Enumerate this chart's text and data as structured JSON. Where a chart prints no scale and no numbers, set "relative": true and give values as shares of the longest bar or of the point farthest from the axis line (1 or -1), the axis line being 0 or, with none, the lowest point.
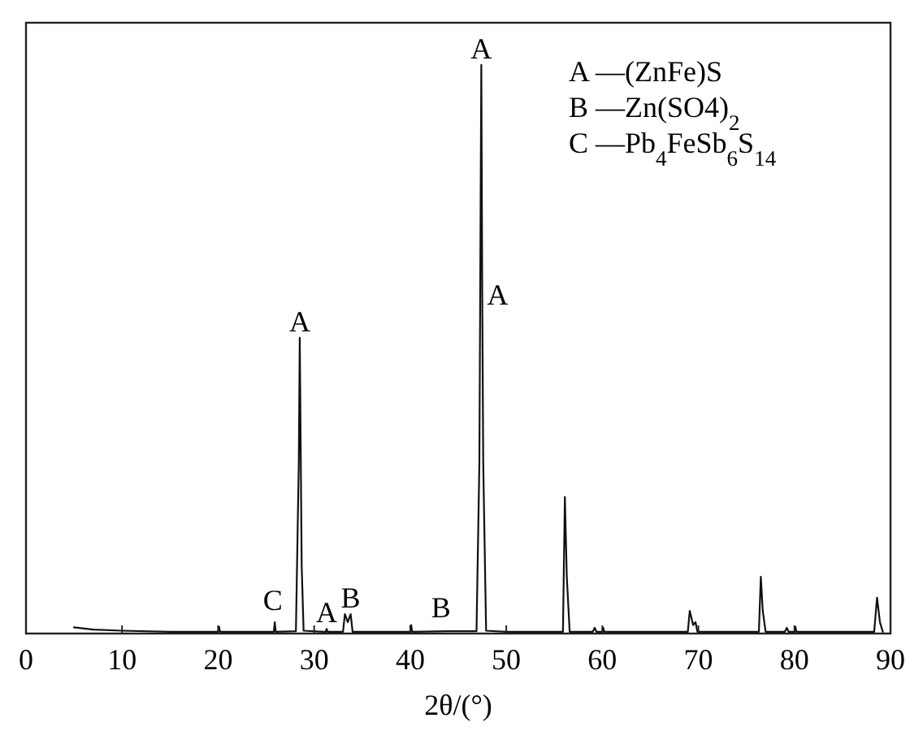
{
  "chart_data": {
    "type": "line",
    "relative": true,
    "xlabel": "2θ/(°)",
    "xlim": [
      0,
      90
    ],
    "xticks": [
      0,
      10,
      20,
      30,
      40,
      50,
      60,
      70,
      80,
      90
    ],
    "tick_labels": "x",
    "grid": false,
    "marker": "none",
    "line_style": "solid",
    "x": [
      5,
      7,
      10,
      15,
      20,
      20.1,
      20.2,
      23,
      25.8,
      25.9,
      26,
      28.1,
      28.4,
      28.5,
      28.7,
      28.9,
      31,
      31.2,
      31.3,
      31.4,
      33.0,
      33.2,
      33.5,
      33.8,
      34.0,
      40,
      40.1,
      40.2,
      44,
      46.9,
      47.2,
      47.4,
      47.5,
      47.6,
      47.9,
      50,
      55.9,
      56.1,
      56.3,
      56.6,
      59,
      59.2,
      59.4,
      60,
      60.1,
      60.2,
      68.9,
      69.1,
      69.45,
      69.7,
      69.9,
      76.3,
      76.5,
      76.7,
      77,
      79,
      79.2,
      79.4,
      80,
      80.1,
      80.2,
      88.3,
      88.6,
      88.9,
      89.2
    ],
    "series": [
      {
        "color": "#111111",
        "values": [
          0.011,
          0.007,
          0.005,
          0.003,
          0.003,
          0.012,
          0.003,
          0.003,
          0.003,
          0.02,
          0.003,
          0.004,
          0.3,
          0.52,
          0.12,
          0.005,
          0.003,
          0.003,
          0.008,
          0.003,
          0.003,
          0.034,
          0.02,
          0.034,
          0.003,
          0.003,
          0.015,
          0.003,
          0.004,
          0.004,
          0.3,
          1,
          0.59,
          0.3,
          0.005,
          0.003,
          0.003,
          0.24,
          0.1,
          0.003,
          0.003,
          0.01,
          0.003,
          0.003,
          0.01,
          0.003,
          0.003,
          0.04,
          0.015,
          0.02,
          0.003,
          0.003,
          0.1,
          0.04,
          0.003,
          0.003,
          0.01,
          0.003,
          0.003,
          0.012,
          0.003,
          0.003,
          0.063,
          0.02,
          0.003
        ]
      }
    ],
    "annotations": [
      {
        "text": "A",
        "x": 28.5,
        "y": 0.52
      },
      {
        "text": "A",
        "x": 47.4,
        "y": 1
      },
      {
        "text": "A",
        "x": 47.5,
        "y": 0.59
      },
      {
        "text": "C",
        "x": 25.7,
        "y": 0.03
      },
      {
        "text": "A",
        "x": 31.3,
        "y": 0.008
      },
      {
        "text": "B",
        "x": 33.8,
        "y": 0.034
      },
      {
        "text": "B",
        "x": 43.2,
        "y": 0.017
      },
      "A —(ZnFe)S",
      "B —Zn(SO4)$_{2}$",
      "C —Pb$_{4}$FeSb$_{6}$S$_{14}$"
    ]
  }
}
